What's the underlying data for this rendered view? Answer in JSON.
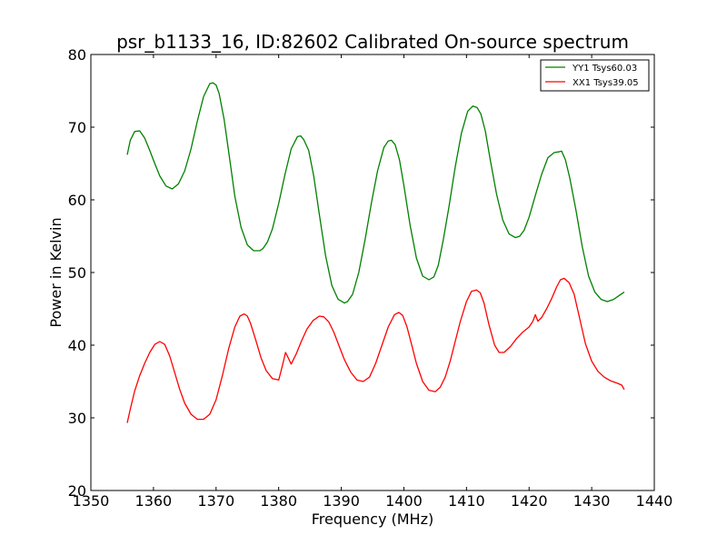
{
  "chart_data": {
    "type": "line",
    "title": "psr_b1133_16, ID:82602 Calibrated On-source spectrum",
    "xlabel": "Frequency (MHz)",
    "ylabel": "Power in Kelvin",
    "xlim": [
      1350,
      1440
    ],
    "ylim": [
      20,
      80
    ],
    "xticks": [
      "1350",
      "1360",
      "1370",
      "1380",
      "1390",
      "1400",
      "1410",
      "1420",
      "1430",
      "1440"
    ],
    "yticks": [
      "20",
      "30",
      "40",
      "50",
      "60",
      "70",
      "80"
    ],
    "grid": false,
    "legend_position": "top-right",
    "series": [
      {
        "name": "YY1 Tsys60.03",
        "color": "#008000",
        "x": [
          1355.8,
          1356.3,
          1357.0,
          1357.8,
          1358.6,
          1359.4,
          1360.2,
          1361.0,
          1362.0,
          1363.0,
          1364.0,
          1365.0,
          1366.0,
          1367.0,
          1368.0,
          1369.0,
          1369.5,
          1370.0,
          1370.5,
          1371.3,
          1372.2,
          1373.0,
          1374.0,
          1375.0,
          1376.0,
          1377.0,
          1377.5,
          1378.2,
          1379.0,
          1380.0,
          1381.0,
          1382.0,
          1383.0,
          1383.5,
          1384.0,
          1384.8,
          1385.6,
          1386.5,
          1387.5,
          1388.5,
          1389.5,
          1390.5,
          1391.0,
          1391.8,
          1392.8,
          1393.8,
          1394.8,
          1395.8,
          1396.8,
          1397.5,
          1398.0,
          1398.6,
          1399.3,
          1400.0,
          1401.0,
          1402.0,
          1403.0,
          1404.0,
          1404.8,
          1405.5,
          1406.3,
          1407.2,
          1408.2,
          1409.2,
          1410.2,
          1411.0,
          1411.7,
          1412.3,
          1413.0,
          1413.8,
          1414.8,
          1415.8,
          1416.8,
          1417.8,
          1418.5,
          1419.2,
          1420.0,
          1421.0,
          1422.0,
          1423.0,
          1424.0,
          1424.7,
          1425.2,
          1425.8,
          1426.5,
          1427.5,
          1428.5,
          1429.5,
          1430.5,
          1431.5,
          1432.5,
          1433.5,
          1434.5,
          1435.2
        ],
        "y": [
          66.2,
          68.2,
          69.4,
          69.5,
          68.5,
          66.8,
          65.0,
          63.3,
          61.9,
          61.5,
          62.2,
          64.0,
          67.0,
          70.8,
          74.2,
          76.0,
          76.1,
          75.8,
          74.6,
          71.0,
          65.5,
          60.5,
          56.2,
          53.8,
          53.0,
          53.0,
          53.3,
          54.2,
          56.0,
          59.5,
          63.5,
          67.0,
          68.7,
          68.8,
          68.3,
          66.8,
          63.3,
          58.0,
          52.3,
          48.2,
          46.3,
          45.8,
          46.0,
          47.0,
          50.0,
          54.5,
          59.5,
          64.0,
          67.2,
          68.1,
          68.2,
          67.6,
          65.5,
          62.0,
          56.5,
          52.0,
          49.5,
          49.0,
          49.4,
          51.0,
          54.5,
          59.0,
          64.5,
          69.2,
          72.2,
          72.9,
          72.7,
          71.8,
          69.5,
          65.5,
          60.8,
          57.2,
          55.3,
          54.8,
          55.0,
          55.8,
          57.6,
          60.6,
          63.5,
          65.8,
          66.5,
          66.6,
          66.7,
          65.5,
          63.0,
          58.5,
          53.5,
          49.5,
          47.3,
          46.3,
          46.0,
          46.3,
          46.9,
          47.3
        ]
      },
      {
        "name": "XX1 Tsys39.05",
        "color": "#ff0000",
        "x": [
          1355.8,
          1356.3,
          1357.0,
          1357.8,
          1358.6,
          1359.4,
          1360.2,
          1361.0,
          1361.8,
          1362.6,
          1363.4,
          1364.2,
          1365.0,
          1366.0,
          1367.0,
          1368.0,
          1369.0,
          1370.0,
          1371.0,
          1372.0,
          1373.0,
          1373.8,
          1374.5,
          1375.0,
          1375.5,
          1376.3,
          1377.2,
          1378.0,
          1379.0,
          1380.0,
          1380.6,
          1381.1,
          1381.5,
          1382.0,
          1382.8,
          1383.6,
          1384.5,
          1385.5,
          1386.5,
          1387.2,
          1388.0,
          1388.8,
          1389.6,
          1390.5,
          1391.5,
          1392.5,
          1393.5,
          1394.5,
          1395.5,
          1396.5,
          1397.5,
          1398.5,
          1399.2,
          1399.8,
          1400.5,
          1401.2,
          1402.0,
          1403.0,
          1404.0,
          1405.0,
          1405.8,
          1406.6,
          1407.4,
          1408.2,
          1409.0,
          1410.0,
          1410.8,
          1411.6,
          1412.2,
          1412.8,
          1413.6,
          1414.5,
          1415.2,
          1416.0,
          1417.0,
          1418.0,
          1419.0,
          1420.0,
          1420.6,
          1421.0,
          1421.4,
          1422.0,
          1422.8,
          1423.6,
          1424.4,
          1425.0,
          1425.6,
          1426.4,
          1427.2,
          1428.0,
          1429.0,
          1430.0,
          1431.0,
          1432.0,
          1433.0,
          1434.0,
          1434.8,
          1435.2
        ],
        "y": [
          29.3,
          31.2,
          33.7,
          35.8,
          37.5,
          39.0,
          40.1,
          40.5,
          40.1,
          38.5,
          36.2,
          33.9,
          32.0,
          30.5,
          29.8,
          29.8,
          30.5,
          32.5,
          35.8,
          39.5,
          42.5,
          44.0,
          44.3,
          44.0,
          43.0,
          40.8,
          38.2,
          36.5,
          35.4,
          35.2,
          37.2,
          39.0,
          38.3,
          37.4,
          38.8,
          40.5,
          42.2,
          43.4,
          44.0,
          43.9,
          43.2,
          41.8,
          40.0,
          38.0,
          36.3,
          35.2,
          35.0,
          35.6,
          37.5,
          40.0,
          42.5,
          44.2,
          44.5,
          44.1,
          42.5,
          40.2,
          37.5,
          35.0,
          33.8,
          33.6,
          34.2,
          35.6,
          37.8,
          40.5,
          43.2,
          46.0,
          47.4,
          47.6,
          47.2,
          45.8,
          42.8,
          40.0,
          39.0,
          39.0,
          39.8,
          40.9,
          41.8,
          42.5,
          43.3,
          44.2,
          43.3,
          43.8,
          45.0,
          46.4,
          48.0,
          49.0,
          49.2,
          48.6,
          47.0,
          44.0,
          40.2,
          37.8,
          36.4,
          35.6,
          35.1,
          34.8,
          34.5,
          33.9
        ]
      }
    ]
  }
}
